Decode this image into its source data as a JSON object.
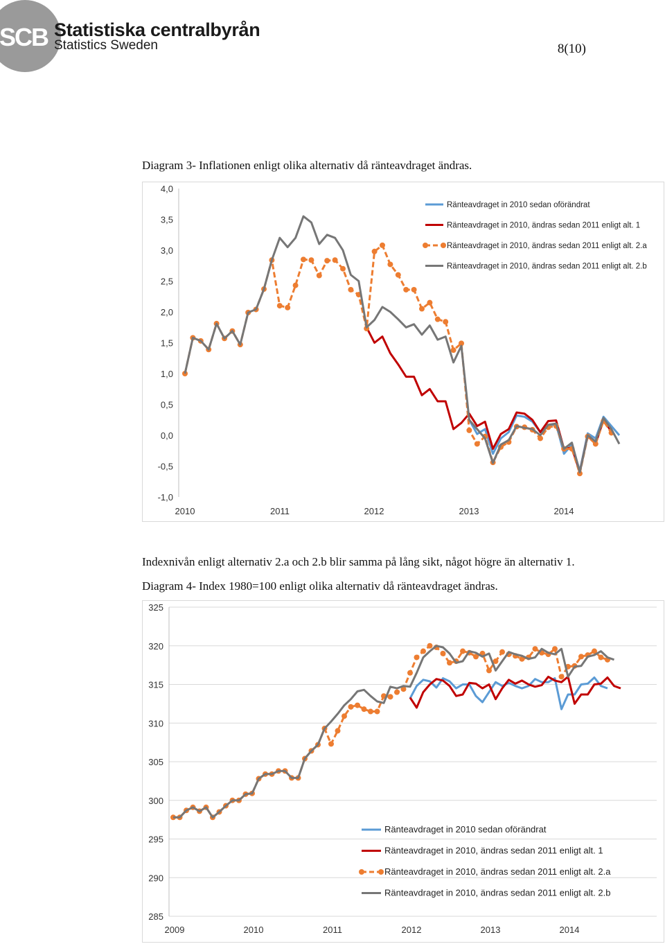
{
  "header": {
    "logo_mark": "SCB",
    "org_name": "Statistiska centralbyrån",
    "org_name_en": "Statistics Sweden",
    "page_number": "8(10)"
  },
  "captions": {
    "diagram3": "Diagram 3- Inflationen enligt olika alternativ då ränteavdraget ändras.",
    "text_between": "Indexnivån enligt alternativ 2.a och 2.b blir samma på lång sikt, något högre än alternativ 1.",
    "diagram4": "Diagram 4- Index 1980=100 enligt olika alternativ då ränteavdraget ändras."
  },
  "colors": {
    "blue": "#5b9bd5",
    "red": "#c00000",
    "orange": "#ed7d31",
    "gray": "#767676",
    "brand_gray": "#9a9a9a"
  },
  "chart_data": [
    {
      "type": "line",
      "title": "",
      "xlabel": "",
      "ylabel": "",
      "y_ticks": [
        "4,0",
        "3,5",
        "3,0",
        "2,5",
        "2,0",
        "1,5",
        "1,0",
        "0,5",
        "0,0",
        "-0,5",
        "-1,0"
      ],
      "ylim": [
        -1.0,
        4.0
      ],
      "x_labels": [
        "2010",
        "2011",
        "2012",
        "2013",
        "2014"
      ],
      "grid": false,
      "legend_position": "top-right",
      "series": [
        {
          "name": "Ränteavdraget in 2010 sedan oförändrat",
          "color": "#5b9bd5",
          "style": "solid",
          "start_index": 36,
          "values": [
            0.25,
            0.02,
            0.1,
            -0.3,
            -0.05,
            0.05,
            0.32,
            0.3,
            0.22,
            0.05,
            0.15,
            0.18,
            -0.3,
            -0.15,
            -0.58,
            0.03,
            -0.05,
            0.3,
            0.15,
            0.0
          ]
        },
        {
          "name": "Ränteavdraget in 2010, ändras sedan 2011 enligt alt. 1",
          "color": "#c00000",
          "style": "solid",
          "start_index": 23,
          "values": [
            1.75,
            1.5,
            1.6,
            1.33,
            1.15,
            0.95,
            0.95,
            0.65,
            0.75,
            0.55,
            0.55,
            0.1,
            0.2,
            0.35,
            0.15,
            0.22,
            -0.22,
            0.02,
            0.1,
            0.37,
            0.35,
            0.25,
            0.05,
            0.23,
            0.24,
            -0.22,
            -0.2,
            -0.6,
            0.0,
            -0.14,
            0.25,
            0.06
          ]
        },
        {
          "name": "Ränteavdraget in 2010, ändras sedan 2011 enligt alt. 2.a",
          "color": "#ed7d31",
          "style": "dashed-markers",
          "start_index": 0,
          "values": [
            1.0,
            1.58,
            1.53,
            1.39,
            1.81,
            1.57,
            1.69,
            1.47,
            1.99,
            2.04,
            2.37,
            2.84,
            2.1,
            2.07,
            2.43,
            2.85,
            2.84,
            2.59,
            2.83,
            2.84,
            2.7,
            2.36,
            2.28,
            1.73,
            2.98,
            3.08,
            2.77,
            2.6,
            2.36,
            2.36,
            2.05,
            2.15,
            1.88,
            1.84,
            1.38,
            1.49,
            0.08,
            -0.14,
            -0.02,
            -0.44,
            -0.19,
            -0.11,
            0.14,
            0.13,
            0.09,
            -0.05,
            0.13,
            0.15,
            -0.22,
            -0.22,
            -0.62,
            -0.02,
            -0.14,
            0.23,
            0.04
          ]
        },
        {
          "name": "Ränteavdraget in 2010, ändras sedan 2011 enligt alt. 2.b",
          "color": "#767676",
          "style": "solid",
          "start_index": 0,
          "values": [
            1.0,
            1.58,
            1.53,
            1.39,
            1.81,
            1.57,
            1.69,
            1.47,
            1.99,
            2.04,
            2.37,
            2.84,
            3.2,
            3.05,
            3.2,
            3.55,
            3.45,
            3.1,
            3.25,
            3.2,
            3.0,
            2.6,
            2.5,
            1.75,
            1.87,
            2.08,
            2.0,
            1.88,
            1.75,
            1.8,
            1.63,
            1.78,
            1.55,
            1.6,
            1.18,
            1.45,
            0.25,
            0.1,
            -0.05,
            -0.45,
            -0.15,
            -0.08,
            0.15,
            0.12,
            0.1,
            0.0,
            0.17,
            0.19,
            -0.22,
            -0.12,
            -0.6,
            0.0,
            -0.1,
            0.28,
            0.1,
            -0.14
          ]
        }
      ]
    },
    {
      "type": "line",
      "title": "",
      "xlabel": "",
      "ylabel": "",
      "y_ticks": [
        "325",
        "320",
        "315",
        "310",
        "305",
        "300",
        "295",
        "290",
        "285"
      ],
      "ylim": [
        285,
        325
      ],
      "x_labels": [
        "2009",
        "2010",
        "2011",
        "2012",
        "2013",
        "2014"
      ],
      "grid": true,
      "legend_position": "bottom-right",
      "series": [
        {
          "name": "Ränteavdraget in 2010 sedan oförändrat",
          "color": "#5b9bd5",
          "style": "solid",
          "start_index": 36,
          "values": [
            313.2,
            314.8,
            315.6,
            315.4,
            314.6,
            315.8,
            315.4,
            314.5,
            315.0,
            315.0,
            313.5,
            312.7,
            314.0,
            315.3,
            314.8,
            315.2,
            314.8,
            314.5,
            314.8,
            315.7,
            315.3,
            315.3,
            315.8,
            311.8,
            313.7,
            313.7,
            315.0,
            315.1,
            315.9,
            314.8,
            314.5
          ]
        },
        {
          "name": "Ränteavdraget in 2010, ändras sedan 2011 enligt alt. 1",
          "color": "#c00000",
          "style": "solid",
          "start_index": 36,
          "values": [
            313.3,
            312.0,
            314.0,
            315.0,
            315.7,
            315.5,
            314.8,
            313.5,
            313.7,
            315.2,
            315.1,
            314.5,
            315.0,
            313.1,
            314.5,
            315.6,
            315.1,
            315.5,
            315.0,
            314.7,
            314.9,
            316.0,
            315.5,
            315.3,
            316.0,
            312.5,
            313.7,
            313.7,
            315.0,
            315.1,
            315.9,
            314.8,
            314.5
          ]
        },
        {
          "name": "Ränteavdraget in 2010, ändras sedan 2011 enligt alt. 2.a",
          "color": "#ed7d31",
          "style": "dashed-markers",
          "start_index": 0,
          "values": [
            297.8,
            297.8,
            298.7,
            299.1,
            298.6,
            299.1,
            297.8,
            298.5,
            299.3,
            300.0,
            300.0,
            300.8,
            300.9,
            302.8,
            303.4,
            303.4,
            303.8,
            303.8,
            302.9,
            302.9,
            305.4,
            306.4,
            307.2,
            309.3,
            307.3,
            309.0,
            310.9,
            312.1,
            312.3,
            311.8,
            311.5,
            311.5,
            313.5,
            313.4,
            314.0,
            314.4,
            316.5,
            318.5,
            319.3,
            320.0,
            319.8,
            319.0,
            317.8,
            318.0,
            319.3,
            319.1,
            318.6,
            319.0,
            316.8,
            318.0,
            319.2,
            318.9,
            318.7,
            318.3,
            318.5,
            319.6,
            319.1,
            318.9,
            319.6,
            316.0,
            317.3,
            317.4,
            318.6,
            318.8,
            319.3,
            318.5,
            318.2
          ]
        },
        {
          "name": "Ränteavdraget in 2010, ändras sedan 2011 enligt alt. 2.b",
          "color": "#767676",
          "style": "solid",
          "start_index": 0,
          "values": [
            297.8,
            297.8,
            298.7,
            299.1,
            298.6,
            299.1,
            297.8,
            298.5,
            299.3,
            300.0,
            300.0,
            300.8,
            300.9,
            302.8,
            303.4,
            303.4,
            303.8,
            303.8,
            302.9,
            302.9,
            305.4,
            306.4,
            307.2,
            309.3,
            310.2,
            311.2,
            312.3,
            313.1,
            314.1,
            314.3,
            313.5,
            312.8,
            312.6,
            314.7,
            314.5,
            314.8,
            314.7,
            316.5,
            318.5,
            319.3,
            320.0,
            319.8,
            319.0,
            317.8,
            318.0,
            319.3,
            319.1,
            318.6,
            319.0,
            316.8,
            318.0,
            319.2,
            318.9,
            318.7,
            318.3,
            318.5,
            319.6,
            319.1,
            318.9,
            319.6,
            316.0,
            317.3,
            317.4,
            318.6,
            318.8,
            319.3,
            318.5,
            318.2
          ]
        }
      ]
    }
  ]
}
